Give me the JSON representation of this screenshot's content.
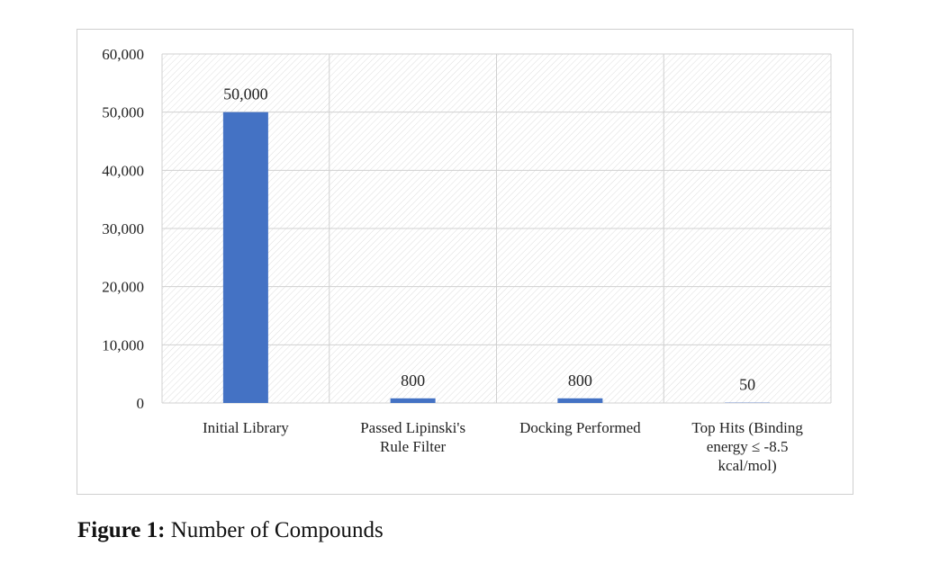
{
  "chart_data": {
    "type": "bar",
    "categories": [
      [
        "Initial Library"
      ],
      [
        "Passed Lipinski's",
        "Rule Filter"
      ],
      [
        "Docking Performed"
      ],
      [
        "Top Hits (Binding",
        "energy ≤ -8.5",
        "kcal/mol)"
      ]
    ],
    "values": [
      50000,
      800,
      800,
      50
    ],
    "data_labels": [
      "50,000",
      "800",
      "800",
      "50"
    ],
    "ylim": [
      0,
      60000
    ],
    "yticks": [
      0,
      10000,
      20000,
      30000,
      40000,
      50000,
      60000
    ],
    "ytick_labels": [
      "0",
      "10,000",
      "20,000",
      "30,000",
      "40,000",
      "50,000",
      "60,000"
    ],
    "grid": true,
    "legend": "none",
    "bar_color": "#4472c4"
  },
  "caption": {
    "label": "Figure 1:",
    "text": " Number of Compounds"
  }
}
